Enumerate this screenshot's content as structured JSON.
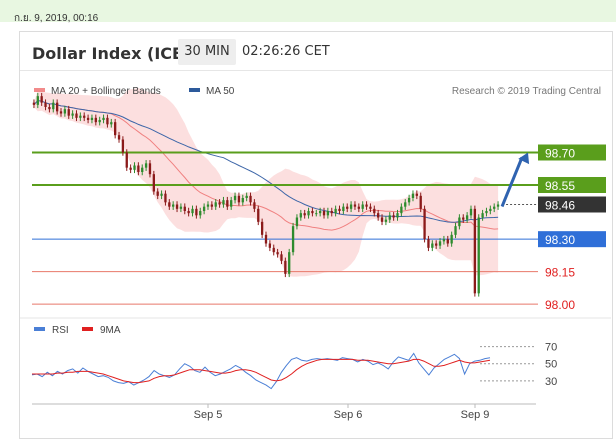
{
  "topbar": {
    "timestamp": "ก.ย. 9, 2019, 00:16"
  },
  "header": {
    "title": "Dollar Index (ICE)",
    "timeframe": "30 MIN",
    "clock": "02:26:26 CET"
  },
  "legend": {
    "items": [
      {
        "label": "MA 20 + Bollinger Bands",
        "color": "#f28b8b"
      },
      {
        "label": "MA 50",
        "color": "#2d5a9b"
      }
    ],
    "credit": "Research © 2019 Trading Central"
  },
  "rsi_legend": {
    "items": [
      {
        "label": "RSI",
        "color": "#4a7fd6"
      },
      {
        "label": "9MA",
        "color": "#e02020"
      }
    ]
  },
  "colors": {
    "up_candle": "#2e8b2e",
    "down_candle": "#8b1a1a",
    "resistance": "#5a9e1c",
    "support_blue": "#2f6fd8",
    "support_red": "#e8786a",
    "band_fill": "#fcd9d9",
    "ma20": "#f08080",
    "ma50": "#3d66a8",
    "arrow": "#2f63b0",
    "last_price_tag": "#333333"
  },
  "chart_data": [
    {
      "type": "candlestick",
      "title": "Dollar Index (ICE)",
      "xlabel": "",
      "ylabel": "",
      "x_ticks": [
        "Sep 5",
        "Sep 6",
        "Sep 9"
      ],
      "ylim": [
        97.95,
        98.85
      ],
      "levels": [
        {
          "value": 98.7,
          "label": "98.70",
          "kind": "resistance"
        },
        {
          "value": 98.55,
          "label": "98.55",
          "kind": "resistance"
        },
        {
          "value": 98.46,
          "label": "98.46",
          "kind": "last"
        },
        {
          "value": 98.3,
          "label": "98.30",
          "kind": "pivot"
        },
        {
          "value": 98.15,
          "label": "98.15",
          "kind": "support"
        },
        {
          "value": 98.0,
          "label": "98.00",
          "kind": "support"
        }
      ],
      "close": [
        98.92,
        98.96,
        98.93,
        98.91,
        98.9,
        98.93,
        98.89,
        98.88,
        98.9,
        98.87,
        98.88,
        98.86,
        98.87,
        98.86,
        98.85,
        98.86,
        98.84,
        98.85,
        98.86,
        98.83,
        98.84,
        98.78,
        98.76,
        98.7,
        98.63,
        98.62,
        98.64,
        98.61,
        98.63,
        98.65,
        98.6,
        98.52,
        98.5,
        98.51,
        98.47,
        98.45,
        98.46,
        98.44,
        98.45,
        98.43,
        98.42,
        98.44,
        98.41,
        98.43,
        98.45,
        98.46,
        98.45,
        98.47,
        98.46,
        98.48,
        98.45,
        98.48,
        98.5,
        98.47,
        98.49,
        98.5,
        98.47,
        98.44,
        98.38,
        98.32,
        98.28,
        98.26,
        98.24,
        98.23,
        98.2,
        98.14,
        98.24,
        98.36,
        98.4,
        98.42,
        98.41,
        98.43,
        98.42,
        98.42,
        98.43,
        98.41,
        98.43,
        98.42,
        98.44,
        98.43,
        98.45,
        98.44,
        98.46,
        98.45,
        98.44,
        98.46,
        98.45,
        98.44,
        98.42,
        98.4,
        98.38,
        98.39,
        98.41,
        98.4,
        98.42,
        98.45,
        98.47,
        98.49,
        98.51,
        98.5,
        98.44,
        98.3,
        98.26,
        98.28,
        98.27,
        98.29,
        98.3,
        98.28,
        98.32,
        98.36,
        98.4,
        98.39,
        98.41,
        98.44,
        98.05,
        98.4,
        98.42,
        98.43,
        98.44,
        98.45,
        98.46
      ]
    },
    {
      "type": "line",
      "title": "RSI",
      "x_ticks": [
        "Sep 5",
        "Sep 6",
        "Sep 9"
      ],
      "y_ticks": [
        70,
        50,
        30
      ],
      "ylim": [
        10,
        80
      ],
      "series": [
        {
          "name": "RSI",
          "values": [
            37,
            38,
            35,
            40,
            36,
            41,
            38,
            42,
            44,
            39,
            45,
            41,
            38,
            35,
            36,
            34,
            30,
            28,
            27,
            29,
            25,
            28,
            31,
            35,
            42,
            38,
            36,
            34,
            37,
            44,
            50,
            47,
            42,
            40,
            46,
            40,
            36,
            38,
            41,
            44,
            48,
            45,
            40,
            36,
            31,
            28,
            25,
            21,
            29,
            40,
            48,
            55,
            57,
            54,
            53,
            55,
            56,
            55,
            56,
            55,
            54,
            57,
            56,
            55,
            52,
            55,
            53,
            49,
            51,
            48,
            44,
            52,
            58,
            56,
            54,
            62,
            51,
            44,
            37,
            45,
            50,
            55,
            58,
            61,
            56,
            38,
            50,
            53,
            54,
            56,
            57
          ]
        },
        {
          "name": "9MA",
          "values": [
            38,
            38,
            38,
            38,
            38,
            39,
            39,
            40,
            40,
            41,
            41,
            41,
            40,
            39,
            38,
            36,
            34,
            32,
            30,
            29,
            28,
            28,
            29,
            30,
            33,
            35,
            36,
            36,
            37,
            39,
            41,
            43,
            43,
            43,
            42,
            41,
            40,
            39,
            39,
            40,
            42,
            43,
            43,
            42,
            40,
            37,
            34,
            31,
            30,
            31,
            34,
            38,
            43,
            47,
            50,
            52,
            54,
            55,
            55,
            55,
            55,
            55,
            55,
            55,
            54,
            54,
            54,
            53,
            52,
            51,
            50,
            50,
            51,
            52,
            53,
            55,
            55,
            53,
            50,
            47,
            47,
            48,
            50,
            52,
            54,
            52,
            51,
            51,
            52,
            53,
            54
          ]
        }
      ]
    }
  ]
}
